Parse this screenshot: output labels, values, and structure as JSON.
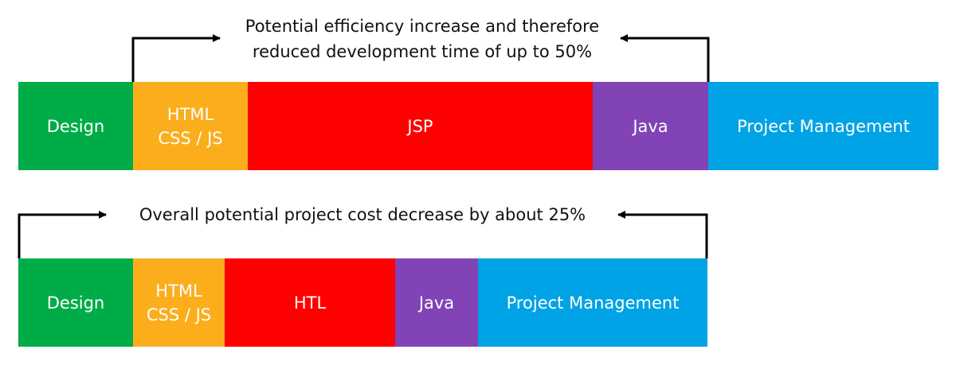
{
  "top": {
    "caption": "Potential efficiency increase and therefore\nreduced development time of up to 50%",
    "segments": [
      {
        "label": "Design",
        "color": "#00ac47"
      },
      {
        "label": "HTML\nCSS / JS",
        "color": "#fbad1c"
      },
      {
        "label": "JSP",
        "color": "#ff0000"
      },
      {
        "label": "Java",
        "color": "#8143b5"
      },
      {
        "label": "Project Management",
        "color": "#00a3e5"
      }
    ]
  },
  "bottom": {
    "caption": "Overall potential project cost decrease by about 25%",
    "segments": [
      {
        "label": "Design",
        "color": "#00ac47"
      },
      {
        "label": "HTML\nCSS / JS",
        "color": "#fbad1c"
      },
      {
        "label": "HTL",
        "color": "#ff0000"
      },
      {
        "label": "Java",
        "color": "#8143b5"
      },
      {
        "label": "Project Management",
        "color": "#00a3e5"
      }
    ]
  }
}
